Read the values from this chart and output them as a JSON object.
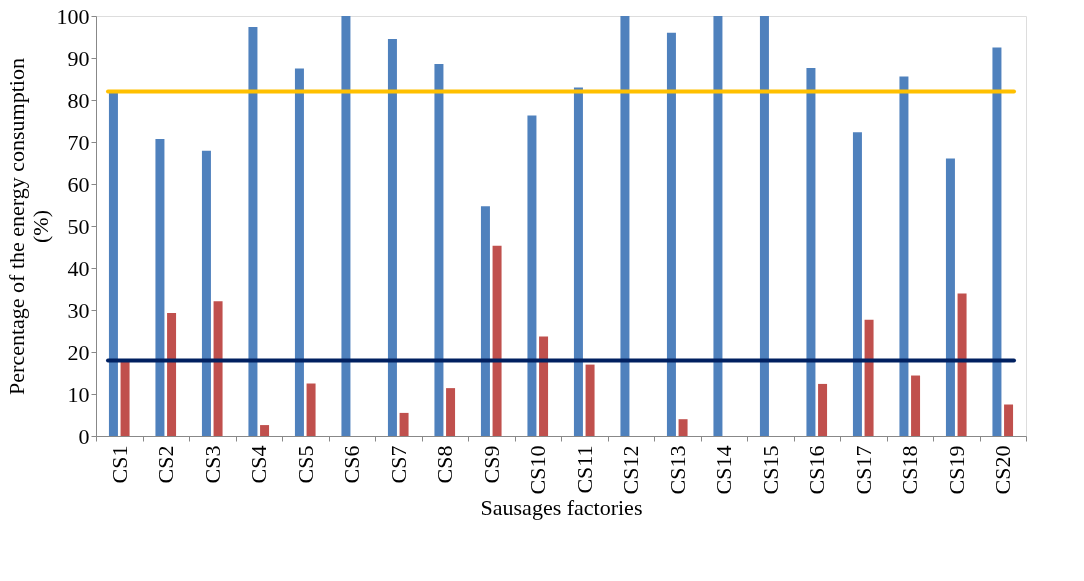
{
  "chart_data": {
    "type": "bar",
    "xlabel": "Sausages factories",
    "ylabel": "Percentage of the energy consumption (%)",
    "categories": [
      "CS1",
      "CS2",
      "CS3",
      "CS4",
      "CS5",
      "CS6",
      "CS7",
      "CS8",
      "CS9",
      "CS10",
      "CS11",
      "CS12",
      "CS13",
      "CS14",
      "CS15",
      "CS16",
      "CS17",
      "CS18",
      "CS19",
      "CS20"
    ],
    "series": [
      {
        "color": "#4f81bd",
        "values": [
          82.2,
          70.7,
          67.9,
          97.4,
          87.5,
          100,
          94.5,
          88.6,
          54.7,
          76.3,
          83,
          100,
          96,
          100,
          100,
          87.6,
          72.3,
          85.6,
          66.1,
          92.5
        ]
      },
      {
        "color": "#c0504d",
        "values": [
          17.8,
          29.3,
          32.1,
          2.6,
          12.5,
          0,
          5.5,
          11.4,
          45.3,
          23.7,
          17,
          0,
          4,
          0,
          0,
          12.4,
          27.7,
          14.4,
          33.9,
          7.5
        ]
      }
    ],
    "ylim": [
      0,
      100
    ],
    "yticks": [
      0,
      10,
      20,
      30,
      40,
      50,
      60,
      70,
      80,
      90,
      100
    ],
    "ref_lines": [
      {
        "axis": "y",
        "value": 82,
        "color": "#ffc000"
      },
      {
        "axis": "y",
        "value": 18,
        "color": "#002060"
      }
    ],
    "grid": false,
    "legend": false
  }
}
